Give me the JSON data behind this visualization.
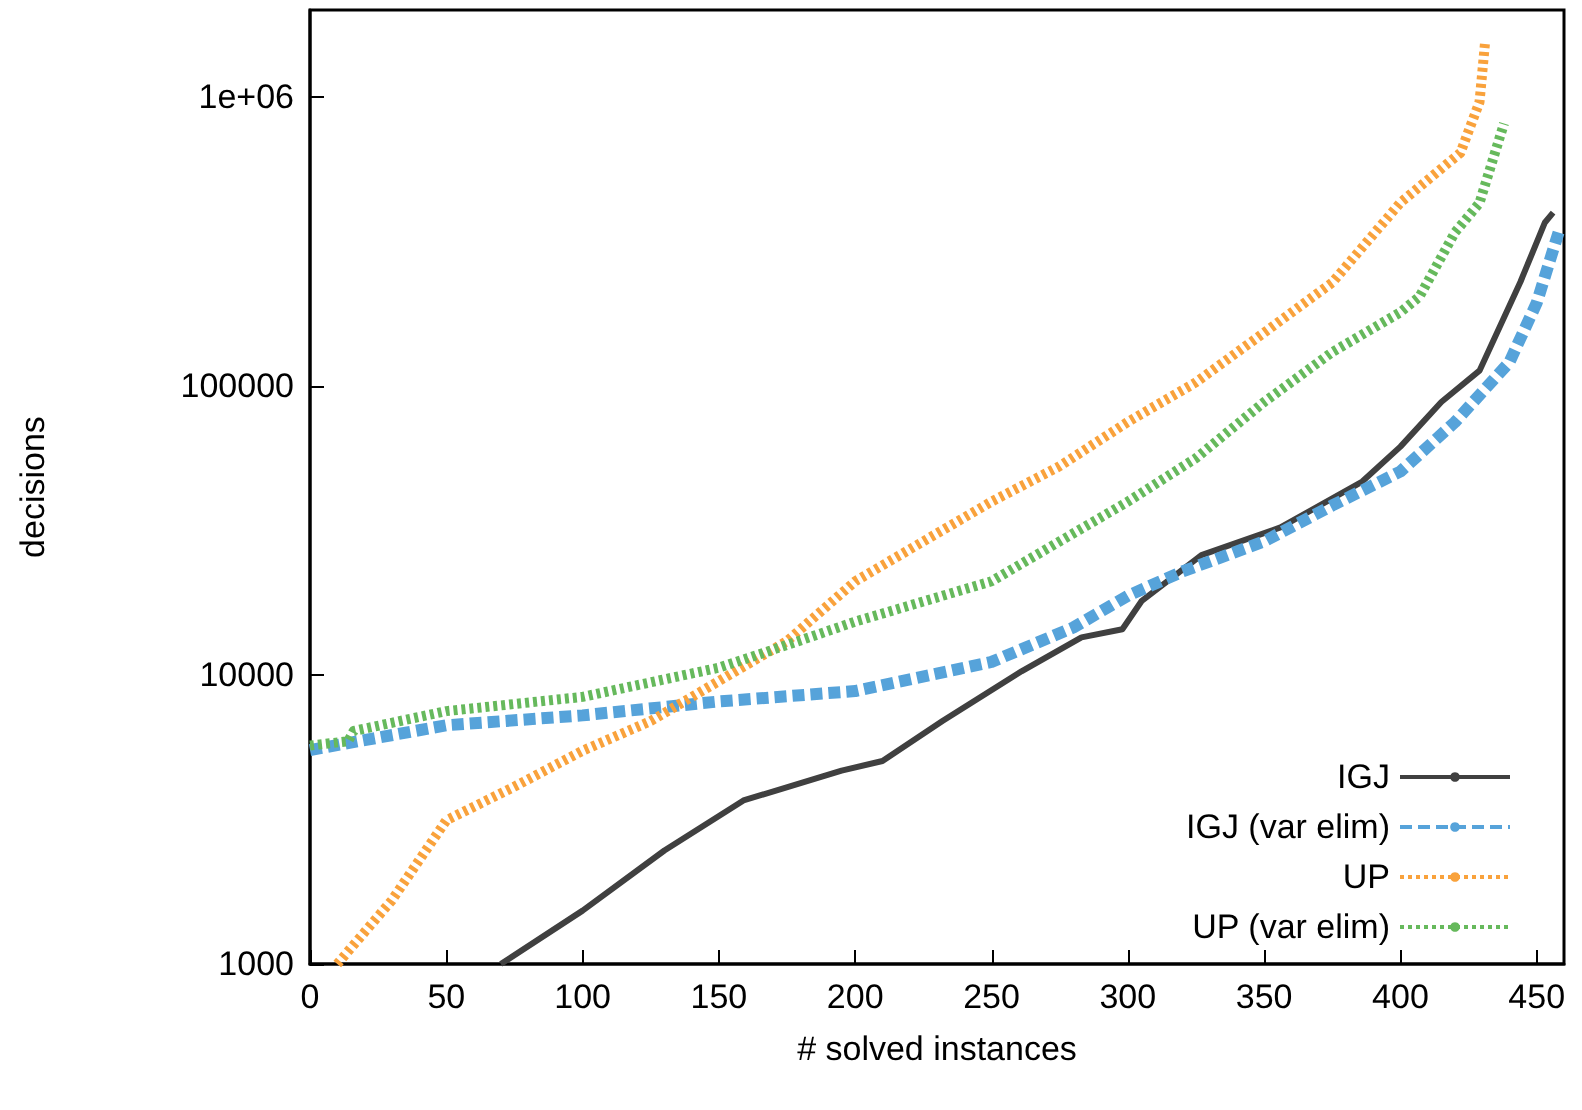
{
  "chart_data": {
    "type": "line",
    "xlabel": "# solved instances",
    "ylabel": "decisions",
    "xlim": [
      0,
      460
    ],
    "xticks": [
      0,
      50,
      100,
      150,
      200,
      250,
      300,
      350,
      400,
      450
    ],
    "ylim": [
      1000,
      2000000
    ],
    "yticks": [
      1000,
      10000,
      100000,
      {
        "value": 1000000,
        "label": "1e+06"
      }
    ],
    "log": "y",
    "grid": false,
    "legend": "bottom right",
    "marker": "none",
    "series": [
      {
        "name": "IGJ",
        "color": "#404040",
        "line_style": "solid",
        "x": [
          70,
          100,
          130,
          159,
          195,
          210,
          232,
          261,
          283,
          298,
          305,
          327,
          356,
          386,
          400,
          415,
          429,
          444,
          453,
          456
        ],
        "values": [
          1000,
          1530,
          2470,
          3680,
          4670,
          5040,
          6930,
          10300,
          13500,
          14400,
          18000,
          26000,
          32400,
          46700,
          61700,
          88000,
          113000,
          229000,
          368000,
          398000
        ]
      },
      {
        "name": "IGJ (var elim)",
        "color": "#56a3da",
        "line_style": "dashed",
        "x": [
          0,
          50,
          100,
          150,
          200,
          250,
          280,
          300,
          320,
          350,
          375,
          400,
          420,
          440,
          450,
          458
        ],
        "values": [
          5500,
          6700,
          7250,
          8100,
          8800,
          11100,
          14600,
          18800,
          22800,
          29000,
          38600,
          50600,
          75000,
          121000,
          194000,
          340000
        ]
      },
      {
        "name": "UP",
        "color": "#f9a23c",
        "line_style": "dotted",
        "x": [
          10,
          30,
          50,
          75,
          100,
          125,
          150,
          175,
          200,
          225,
          250,
          275,
          300,
          325,
          350,
          375,
          400,
          422,
          429,
          431
        ],
        "values": [
          1000,
          1660,
          3140,
          4110,
          5470,
          6930,
          9530,
          13100,
          21100,
          29000,
          39800,
          52800,
          75100,
          103000,
          153000,
          228000,
          431000,
          641000,
          960000,
          1530000
        ]
      },
      {
        "name": "UP (var elim)",
        "color": "#66b95c",
        "line_style": "dotted",
        "x": [
          0,
          14,
          16,
          50,
          100,
          150,
          175,
          200,
          250,
          275,
          300,
          325,
          350,
          375,
          400,
          407,
          420,
          429,
          438
        ],
        "values": [
          5700,
          5900,
          6400,
          7500,
          8400,
          10600,
          12700,
          15300,
          21100,
          29000,
          39800,
          56300,
          88000,
          131000,
          180000,
          204000,
          340000,
          430000,
          810000
        ]
      }
    ]
  }
}
